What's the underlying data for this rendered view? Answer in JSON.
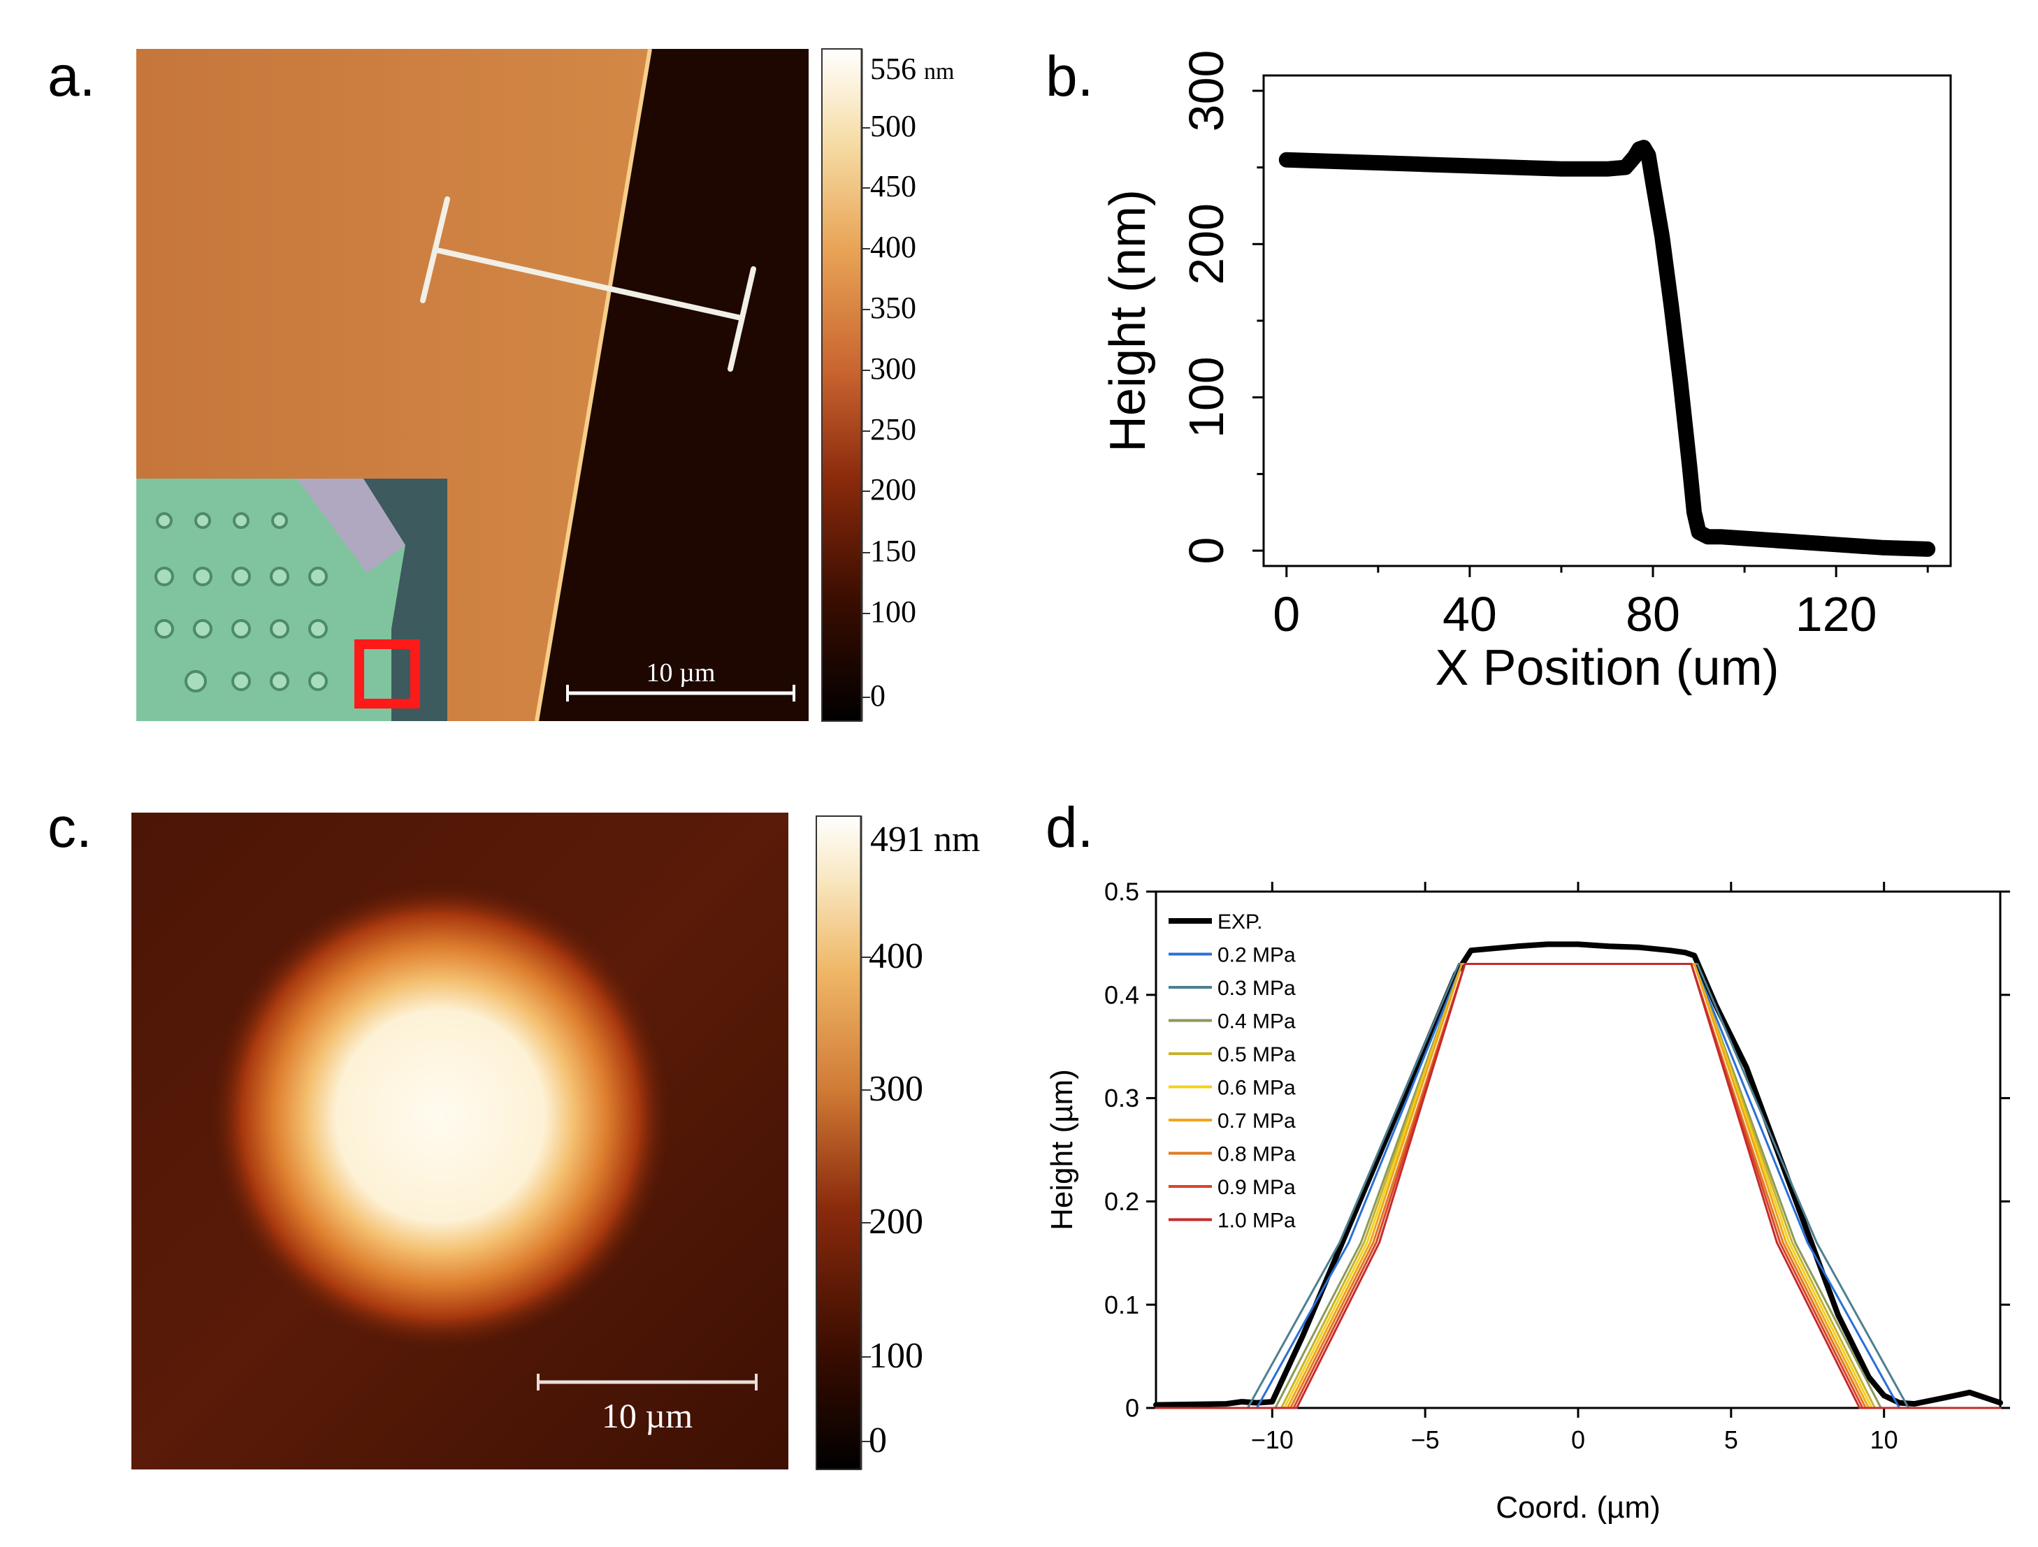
{
  "panels": {
    "a": {
      "label": "a.",
      "colorbar_max": "556",
      "colorbar_unit": "nm",
      "colorbar_ticks": [
        "500",
        "450",
        "400",
        "350",
        "300",
        "250",
        "200",
        "150",
        "100",
        "0"
      ],
      "scale_bar": "10 µm"
    },
    "b": {
      "label": "b."
    },
    "c": {
      "label": "c.",
      "colorbar_max": "491 nm",
      "colorbar_ticks": [
        "400",
        "300",
        "200",
        "100",
        "0"
      ],
      "scale_bar": "10 µm"
    },
    "d": {
      "label": "d."
    }
  },
  "colors": {
    "afm_orange": "#c5743a",
    "afm_dark": "#1d0700",
    "inset_green": "#7fc49e",
    "inset_box": "#ff1a1a",
    "exp_black": "#000000"
  },
  "chart_data": [
    {
      "id": "b",
      "type": "line",
      "title": "",
      "xlabel": "X Position (um)",
      "ylabel": "Height (nm)",
      "xlim": [
        -5,
        145
      ],
      "ylim": [
        -10,
        310
      ],
      "xticks": [
        0,
        40,
        80,
        120
      ],
      "yticks": [
        0,
        100,
        200,
        300
      ],
      "grid": false,
      "series": [
        {
          "name": "profile",
          "x": [
            0,
            10,
            20,
            30,
            40,
            50,
            60,
            70,
            74,
            76,
            77,
            78,
            79,
            80,
            82,
            84,
            86,
            88,
            89,
            90,
            92,
            95,
            100,
            110,
            120,
            130,
            140
          ],
          "y": [
            255,
            254,
            253,
            252,
            251,
            250,
            249,
            249,
            250,
            257,
            262,
            263,
            258,
            240,
            205,
            160,
            110,
            55,
            25,
            12,
            9,
            9,
            8,
            6,
            4,
            2,
            1
          ]
        }
      ]
    },
    {
      "id": "d",
      "type": "line",
      "title": "",
      "xlabel": "Coord. (µm)",
      "ylabel": "Height (µm)",
      "xlim": [
        -13.8,
        13.8
      ],
      "ylim": [
        0,
        0.5
      ],
      "xticks": [
        -10,
        -5,
        0,
        5,
        10
      ],
      "yticks": [
        0,
        0.1,
        0.2,
        0.3,
        0.4,
        0.5
      ],
      "legend": "top-left",
      "series": [
        {
          "name": "EXP.",
          "color": "#000000",
          "x": [
            -13.8,
            -11.5,
            -11.0,
            -10.5,
            -10.0,
            -9.0,
            -8.0,
            -7.0,
            -6.0,
            -5.0,
            -4.0,
            -3.5,
            -2.0,
            -1.0,
            0.0,
            1.0,
            2.0,
            3.0,
            3.5,
            3.8,
            4.5,
            5.5,
            6.5,
            7.5,
            8.5,
            9.5,
            10.0,
            10.5,
            11.0,
            12.0,
            12.8,
            13.8
          ],
          "y": [
            0.003,
            0.004,
            0.006,
            0.005,
            0.006,
            0.07,
            0.14,
            0.21,
            0.28,
            0.35,
            0.42,
            0.443,
            0.447,
            0.449,
            0.449,
            0.447,
            0.446,
            0.443,
            0.441,
            0.438,
            0.39,
            0.33,
            0.25,
            0.17,
            0.09,
            0.03,
            0.012,
            0.005,
            0.004,
            0.01,
            0.015,
            0.005
          ]
        },
        {
          "name": "0.2 MPa",
          "color": "#2b6fd6",
          "x": [
            -13.8,
            -10.5,
            -7.5,
            -3.8,
            3.8,
            7.5,
            10.5,
            13.8
          ],
          "y": [
            0,
            0,
            0.16,
            0.43,
            0.43,
            0.16,
            0,
            0
          ]
        },
        {
          "name": "0.3 MPa",
          "color": "#4e7f8e",
          "x": [
            -13.8,
            -10.8,
            -7.8,
            -3.9,
            3.9,
            7.8,
            10.8,
            13.8
          ],
          "y": [
            0,
            0,
            0.16,
            0.43,
            0.43,
            0.16,
            0,
            0
          ]
        },
        {
          "name": "0.4 MPa",
          "color": "#8a9a5b",
          "x": [
            -13.8,
            -9.9,
            -7.1,
            -3.8,
            3.8,
            7.1,
            9.9,
            13.8
          ],
          "y": [
            0,
            0,
            0.16,
            0.43,
            0.43,
            0.16,
            0,
            0
          ]
        },
        {
          "name": "0.5 MPa",
          "color": "#c9b22c",
          "x": [
            -13.8,
            -9.7,
            -7.0,
            -3.8,
            3.8,
            7.0,
            9.7,
            13.8
          ],
          "y": [
            0,
            0,
            0.16,
            0.43,
            0.43,
            0.16,
            0,
            0
          ]
        },
        {
          "name": "0.6 MPa",
          "color": "#f2d21b",
          "x": [
            -13.8,
            -9.6,
            -6.9,
            -3.8,
            3.8,
            6.9,
            9.6,
            13.8
          ],
          "y": [
            0,
            0,
            0.16,
            0.43,
            0.43,
            0.16,
            0,
            0
          ]
        },
        {
          "name": "0.7 MPa",
          "color": "#f0a51a",
          "x": [
            -13.8,
            -9.5,
            -6.8,
            -3.8,
            3.8,
            6.8,
            9.5,
            13.8
          ],
          "y": [
            0,
            0,
            0.16,
            0.43,
            0.43,
            0.16,
            0,
            0
          ]
        },
        {
          "name": "0.8 MPa",
          "color": "#e07a1e",
          "x": [
            -13.8,
            -9.4,
            -6.7,
            -3.7,
            3.7,
            6.7,
            9.4,
            13.8
          ],
          "y": [
            0,
            0,
            0.16,
            0.43,
            0.43,
            0.16,
            0,
            0
          ]
        },
        {
          "name": "0.9 MPa",
          "color": "#d8452a",
          "x": [
            -13.8,
            -9.3,
            -6.6,
            -3.7,
            3.7,
            6.6,
            9.3,
            13.8
          ],
          "y": [
            0,
            0,
            0.16,
            0.43,
            0.43,
            0.16,
            0,
            0
          ]
        },
        {
          "name": "1.0 MPa",
          "color": "#c62a2a",
          "x": [
            -13.8,
            -9.2,
            -6.5,
            -3.7,
            3.7,
            6.5,
            9.2,
            13.8
          ],
          "y": [
            0,
            0,
            0.16,
            0.43,
            0.43,
            0.16,
            0,
            0
          ]
        }
      ]
    }
  ]
}
